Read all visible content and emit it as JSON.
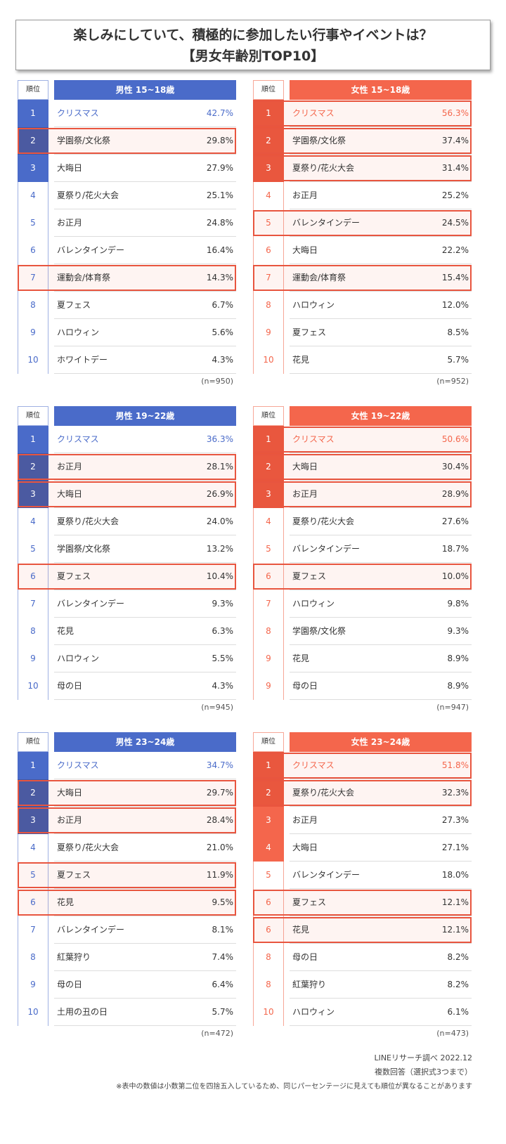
{
  "title": {
    "line1": "楽しみにしていて、積極的に参加したい行事やイベントは？",
    "line2": "【男女年齢別TOP10】"
  },
  "tables": [
    {
      "rank_header": "順位",
      "header": "男性 15~18歳",
      "sample": "(n=950)",
      "color": "#4a6bc9",
      "highlight": [
        1,
        6
      ],
      "filled": 3,
      "rows": [
        [
          "1",
          "クリスマス",
          "42.7%"
        ],
        [
          "2",
          "学園祭/文化祭",
          "29.8%"
        ],
        [
          "3",
          "大晦日",
          "27.9%"
        ],
        [
          "4",
          "夏祭り/花火大会",
          "25.1%"
        ],
        [
          "5",
          "お正月",
          "24.8%"
        ],
        [
          "6",
          "バレンタインデー",
          "16.4%"
        ],
        [
          "7",
          "運動会/体育祭",
          "14.3%"
        ],
        [
          "8",
          "夏フェス",
          "6.7%"
        ],
        [
          "9",
          "ハロウィン",
          "5.6%"
        ],
        [
          "10",
          "ホワイトデー",
          "4.3%"
        ]
      ]
    },
    {
      "rank_header": "順位",
      "header": "女性 15~18歳",
      "sample": "(n=952)",
      "color": "#f4664c",
      "highlight": [
        0,
        1,
        2,
        4,
        6
      ],
      "filled": 3,
      "rows": [
        [
          "1",
          "クリスマス",
          "56.3%"
        ],
        [
          "2",
          "学園祭/文化祭",
          "37.4%"
        ],
        [
          "3",
          "夏祭り/花火大会",
          "31.4%"
        ],
        [
          "4",
          "お正月",
          "25.2%"
        ],
        [
          "5",
          "バレンタインデー",
          "24.5%"
        ],
        [
          "6",
          "大晦日",
          "22.2%"
        ],
        [
          "7",
          "運動会/体育祭",
          "15.4%"
        ],
        [
          "8",
          "ハロウィン",
          "12.0%"
        ],
        [
          "9",
          "夏フェス",
          "8.5%"
        ],
        [
          "10",
          "花見",
          "5.7%"
        ]
      ]
    },
    {
      "rank_header": "順位",
      "header": "男性 19~22歳",
      "sample": "(n=945)",
      "color": "#4a6bc9",
      "highlight": [
        1,
        2,
        5
      ],
      "filled": 3,
      "rows": [
        [
          "1",
          "クリスマス",
          "36.3%"
        ],
        [
          "2",
          "お正月",
          "28.1%"
        ],
        [
          "3",
          "大晦日",
          "26.9%"
        ],
        [
          "4",
          "夏祭り/花火大会",
          "24.0%"
        ],
        [
          "5",
          "学園祭/文化祭",
          "13.2%"
        ],
        [
          "6",
          "夏フェス",
          "10.4%"
        ],
        [
          "7",
          "バレンタインデー",
          "9.3%"
        ],
        [
          "8",
          "花見",
          "6.3%"
        ],
        [
          "9",
          "ハロウィン",
          "5.5%"
        ],
        [
          "10",
          "母の日",
          "4.3%"
        ]
      ]
    },
    {
      "rank_header": "順位",
      "header": "女性 19~22歳",
      "sample": "(n=947)",
      "color": "#f4664c",
      "highlight": [
        0,
        1,
        2,
        5
      ],
      "filled": 3,
      "rows": [
        [
          "1",
          "クリスマス",
          "50.6%"
        ],
        [
          "2",
          "大晦日",
          "30.4%"
        ],
        [
          "3",
          "お正月",
          "28.9%"
        ],
        [
          "4",
          "夏祭り/花火大会",
          "27.6%"
        ],
        [
          "5",
          "バレンタインデー",
          "18.7%"
        ],
        [
          "6",
          "夏フェス",
          "10.0%"
        ],
        [
          "7",
          "ハロウィン",
          "9.8%"
        ],
        [
          "8",
          "学園祭/文化祭",
          "9.3%"
        ],
        [
          "9",
          "花見",
          "8.9%"
        ],
        [
          "9",
          "母の日",
          "8.9%"
        ]
      ]
    },
    {
      "rank_header": "順位",
      "header": "男性 23~24歳",
      "sample": "(n=472)",
      "color": "#4a6bc9",
      "highlight": [
        1,
        2,
        4,
        5
      ],
      "filled": 3,
      "rows": [
        [
          "1",
          "クリスマス",
          "34.7%"
        ],
        [
          "2",
          "大晦日",
          "29.7%"
        ],
        [
          "3",
          "お正月",
          "28.4%"
        ],
        [
          "4",
          "夏祭り/花火大会",
          "21.0%"
        ],
        [
          "5",
          "夏フェス",
          "11.9%"
        ],
        [
          "6",
          "花見",
          "9.5%"
        ],
        [
          "7",
          "バレンタインデー",
          "8.1%"
        ],
        [
          "8",
          "紅葉狩り",
          "7.4%"
        ],
        [
          "9",
          "母の日",
          "6.4%"
        ],
        [
          "10",
          "土用の丑の日",
          "5.7%"
        ]
      ]
    },
    {
      "rank_header": "順位",
      "header": "女性 23~24歳",
      "sample": "(n=473)",
      "color": "#f4664c",
      "highlight": [
        0,
        1,
        5,
        6
      ],
      "filled": 4,
      "rows": [
        [
          "1",
          "クリスマス",
          "51.8%"
        ],
        [
          "2",
          "夏祭り/花火大会",
          "32.3%"
        ],
        [
          "3",
          "お正月",
          "27.3%"
        ],
        [
          "4",
          "大晦日",
          "27.1%"
        ],
        [
          "5",
          "バレンタインデー",
          "18.0%"
        ],
        [
          "6",
          "夏フェス",
          "12.1%"
        ],
        [
          "6",
          "花見",
          "12.1%"
        ],
        [
          "8",
          "母の日",
          "8.2%"
        ],
        [
          "8",
          "紅葉狩り",
          "8.2%"
        ],
        [
          "10",
          "ハロウィン",
          "6.1%"
        ]
      ]
    }
  ],
  "footer": {
    "source": "LINEリサーチ調べ 2022.12",
    "method": "複数回答（選択式3つまで）",
    "note": "※表中の数値は小数第二位を四捨五入しているため、同じパーセンテージに見えても順位が異なることがあります"
  }
}
